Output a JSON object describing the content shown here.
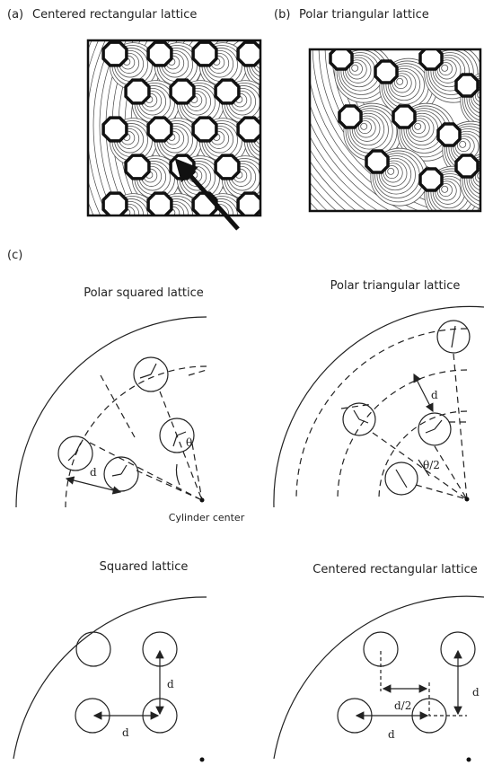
{
  "panel_a": {
    "label": "(a)",
    "title": "Centered rectangular lattice"
  },
  "panel_b": {
    "label": "(b)",
    "title": "Polar triangular lattice"
  },
  "panel_c": {
    "label": "(c)",
    "polar_squared": {
      "title": "Polar squared lattice",
      "d": "d",
      "theta": "θ",
      "center": "Cylinder center"
    },
    "polar_triangular": {
      "title": "Polar triangular lattice",
      "d": "d",
      "half_theta": "θ/2"
    },
    "squared": {
      "title": "Squared lattice",
      "d_vertical": "d",
      "d_horizontal": "d"
    },
    "centered_rectangular": {
      "title": "Centered rectangular lattice",
      "d_half": "d/2",
      "d_vertical": "d",
      "d_horizontal": "d"
    }
  }
}
